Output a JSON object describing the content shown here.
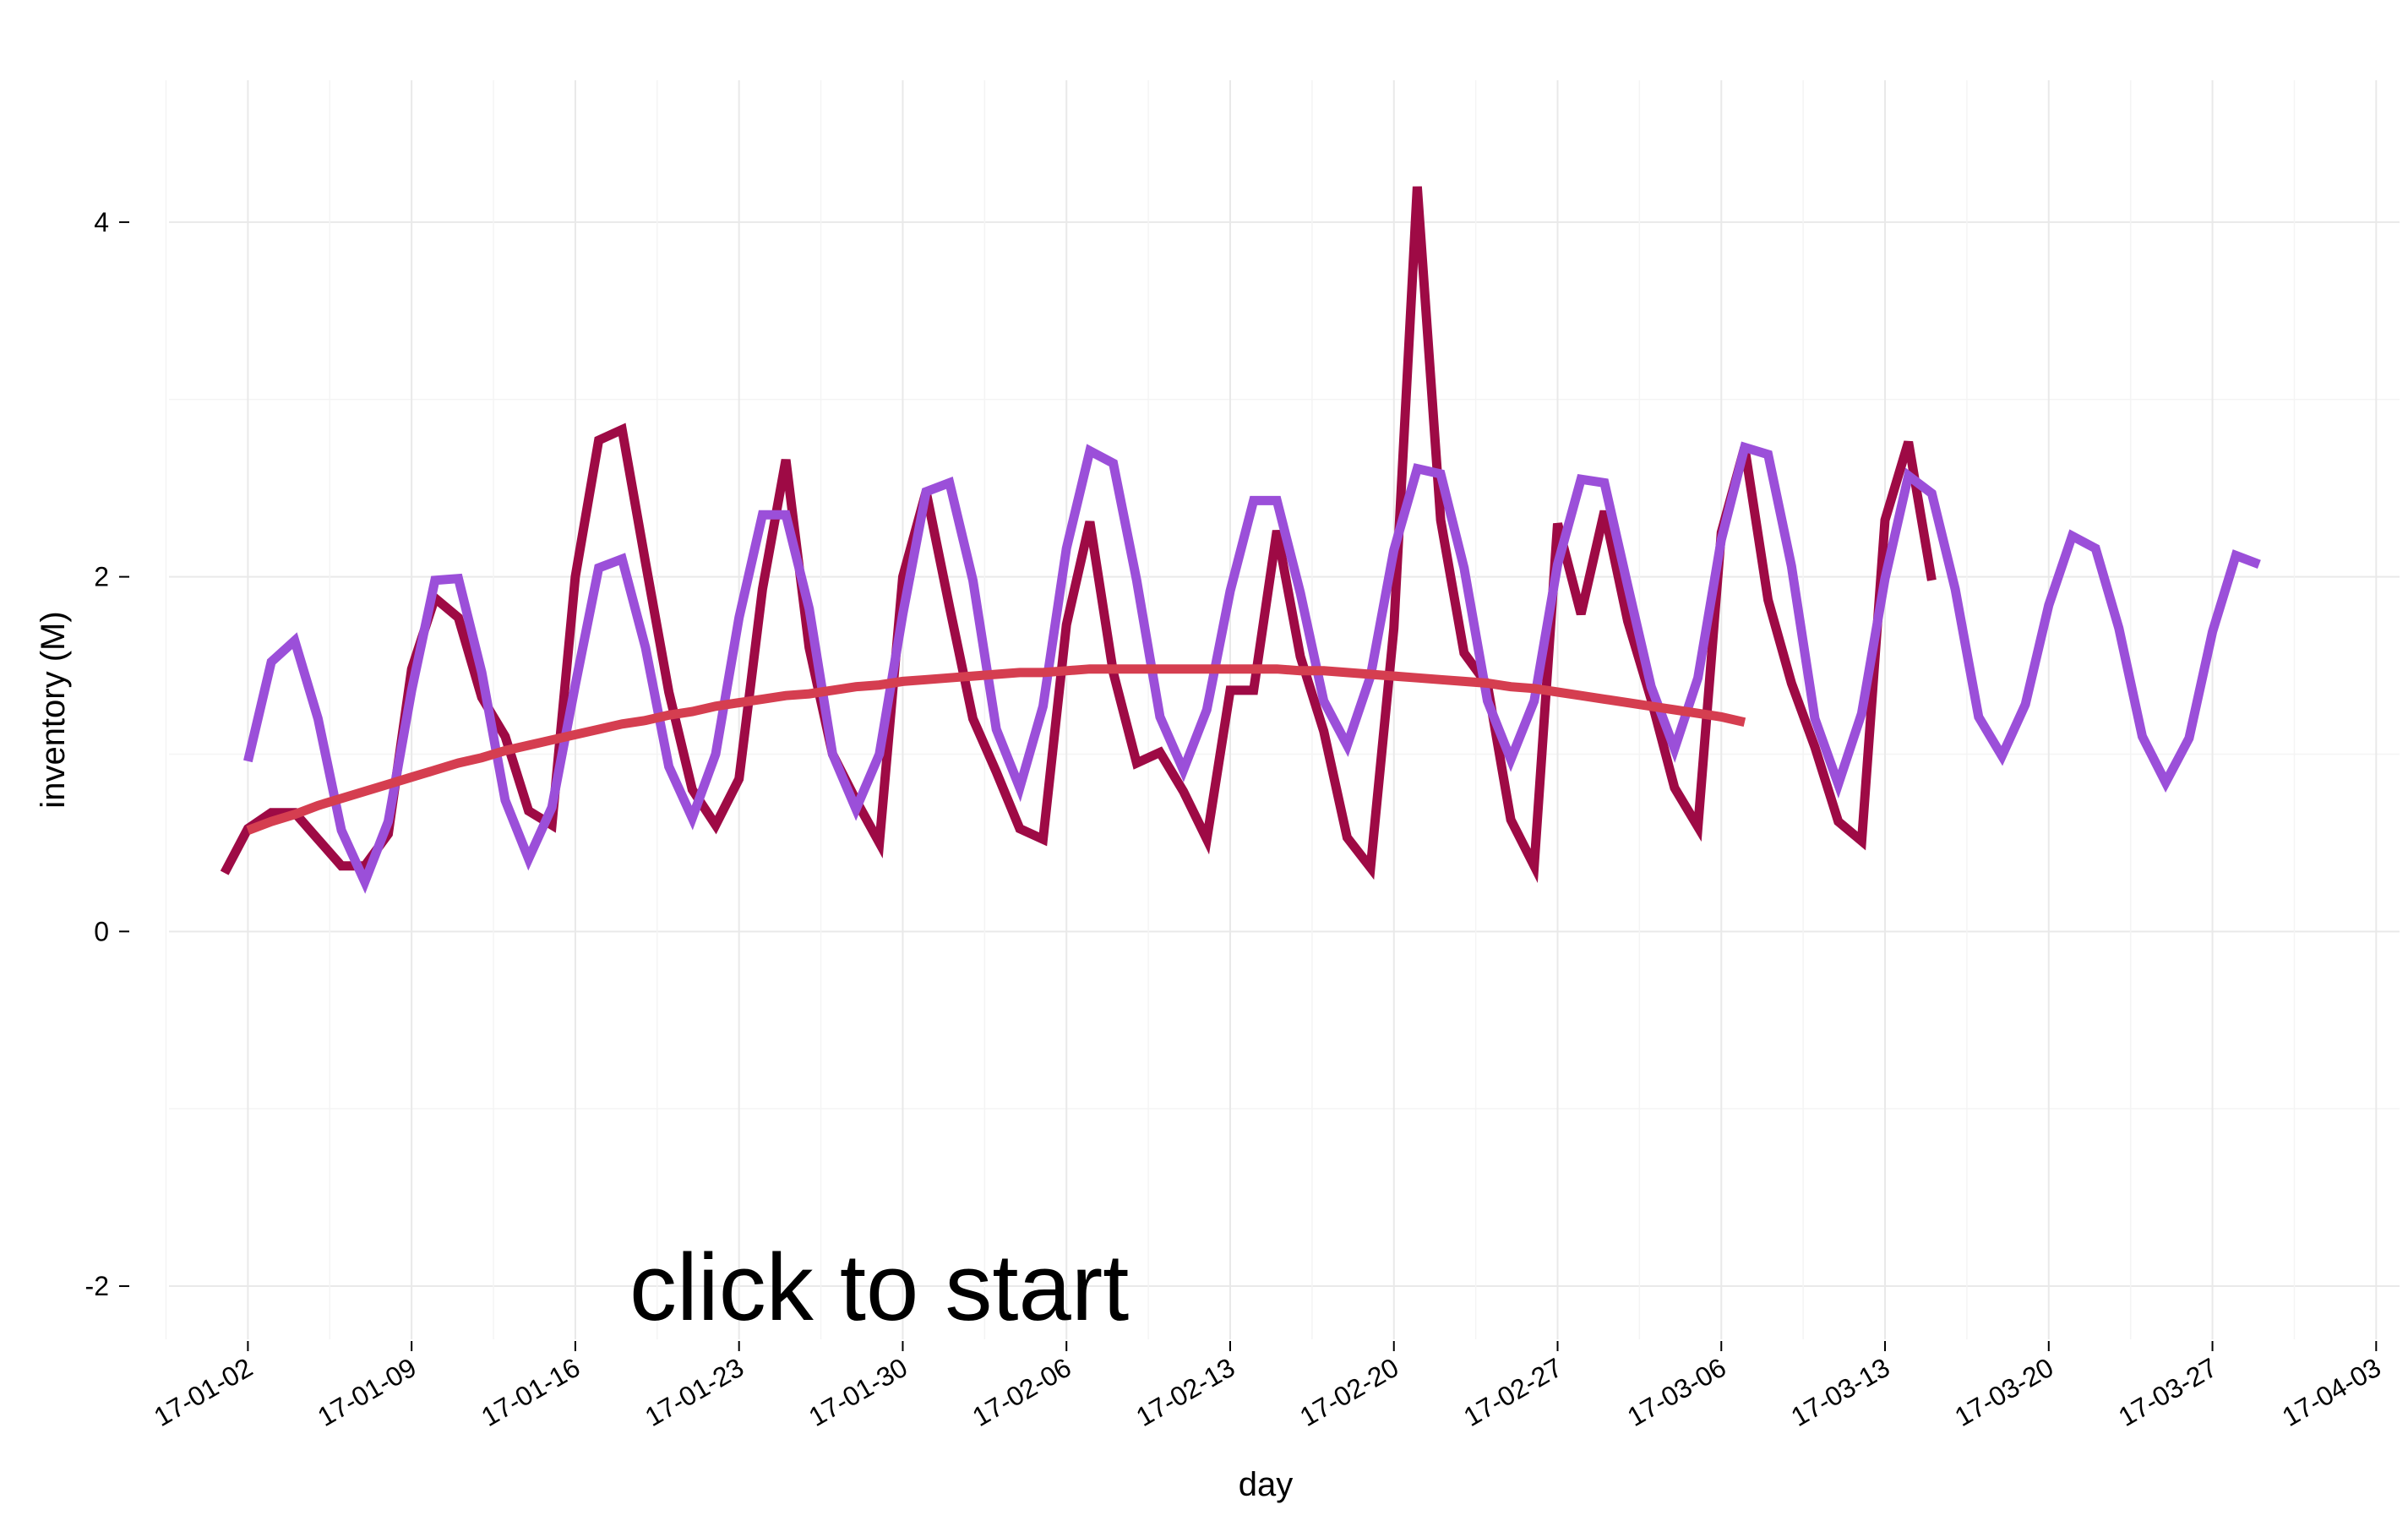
{
  "chart_data": {
    "type": "line",
    "xlabel": "day",
    "ylabel": "inventory (M)",
    "ylim": [
      -2.3,
      4.8
    ],
    "xlim": [
      "2016-12-28",
      "2017-04-04"
    ],
    "grid": true,
    "y_ticks": [
      {
        "value": -2,
        "label": "-2"
      },
      {
        "value": 0,
        "label": "0"
      },
      {
        "value": 2,
        "label": "2"
      },
      {
        "value": 4,
        "label": "4"
      }
    ],
    "x_ticks": [
      {
        "date": "2017-01-02",
        "label": "17-01-02"
      },
      {
        "date": "2017-01-09",
        "label": "17-01-09"
      },
      {
        "date": "2017-01-16",
        "label": "17-01-16"
      },
      {
        "date": "2017-01-23",
        "label": "17-01-23"
      },
      {
        "date": "2017-01-30",
        "label": "17-01-30"
      },
      {
        "date": "2017-02-06",
        "label": "17-02-06"
      },
      {
        "date": "2017-02-13",
        "label": "17-02-13"
      },
      {
        "date": "2017-02-20",
        "label": "17-02-20"
      },
      {
        "date": "2017-02-27",
        "label": "17-02-27"
      },
      {
        "date": "2017-03-06",
        "label": "17-03-06"
      },
      {
        "date": "2017-03-13",
        "label": "17-03-13"
      },
      {
        "date": "2017-03-20",
        "label": "17-03-20"
      },
      {
        "date": "2017-03-27",
        "label": "17-03-27"
      },
      {
        "date": "2017-04-03",
        "label": "17-04-03"
      }
    ],
    "annotation": "click to start",
    "series": [
      {
        "color": "#9e0a45",
        "start": "2017-01-01",
        "values": [
          0.33,
          0.58,
          0.67,
          0.67,
          0.52,
          0.37,
          0.37,
          0.55,
          1.48,
          1.88,
          1.77,
          1.32,
          1.1,
          0.68,
          0.6,
          2.0,
          2.77,
          2.83,
          2.08,
          1.35,
          0.8,
          0.6,
          0.86,
          1.93,
          2.66,
          1.6,
          1.0,
          0.74,
          0.5,
          2.0,
          2.48,
          1.83,
          1.2,
          0.9,
          0.58,
          0.52,
          1.73,
          2.31,
          1.46,
          0.95,
          1.01,
          0.79,
          0.52,
          1.36,
          1.36,
          2.26,
          1.55,
          1.13,
          0.53,
          0.36,
          1.71,
          4.2,
          2.32,
          1.57,
          1.39,
          0.63,
          0.37,
          2.3,
          1.79,
          2.37,
          1.75,
          1.31,
          0.81,
          0.59,
          2.25,
          2.73,
          1.87,
          1.4,
          1.04,
          0.62,
          0.51,
          2.32,
          2.76,
          1.98
        ]
      },
      {
        "color": "#9b4fd9",
        "start": "2017-01-02",
        "values": [
          0.96,
          1.52,
          1.64,
          1.2,
          0.57,
          0.28,
          0.62,
          1.36,
          1.98,
          1.99,
          1.46,
          0.74,
          0.41,
          0.7,
          1.39,
          2.05,
          2.1,
          1.6,
          0.93,
          0.64,
          1.0,
          1.77,
          2.35,
          2.35,
          1.82,
          1.0,
          0.69,
          1.0,
          1.79,
          2.48,
          2.53,
          1.98,
          1.14,
          0.81,
          1.27,
          2.16,
          2.71,
          2.64,
          1.98,
          1.21,
          0.91,
          1.25,
          1.92,
          2.43,
          2.43,
          1.91,
          1.3,
          1.05,
          1.44,
          2.15,
          2.61,
          2.58,
          2.05,
          1.3,
          0.97,
          1.3,
          2.07,
          2.55,
          2.53,
          1.95,
          1.38,
          1.03,
          1.43,
          2.21,
          2.73,
          2.69,
          2.06,
          1.2,
          0.83,
          1.23,
          1.99,
          2.57,
          2.47,
          1.93,
          1.21,
          0.99,
          1.28,
          1.84,
          2.23,
          2.16,
          1.71,
          1.1,
          0.84,
          1.09,
          1.69,
          2.12,
          2.07
        ]
      },
      {
        "color": "#d53e50",
        "start": "2017-01-02",
        "values": [
          0.57,
          0.62,
          0.66,
          0.71,
          0.75,
          0.79,
          0.83,
          0.87,
          0.91,
          0.95,
          0.98,
          1.02,
          1.05,
          1.08,
          1.11,
          1.14,
          1.17,
          1.19,
          1.22,
          1.24,
          1.27,
          1.29,
          1.31,
          1.33,
          1.34,
          1.36,
          1.38,
          1.39,
          1.41,
          1.42,
          1.43,
          1.44,
          1.45,
          1.46,
          1.46,
          1.47,
          1.48,
          1.48,
          1.48,
          1.48,
          1.48,
          1.48,
          1.48,
          1.48,
          1.48,
          1.47,
          1.47,
          1.46,
          1.45,
          1.44,
          1.43,
          1.42,
          1.41,
          1.4,
          1.38,
          1.37,
          1.35,
          1.33,
          1.31,
          1.29,
          1.27,
          1.25,
          1.23,
          1.21,
          1.18
        ]
      }
    ]
  }
}
